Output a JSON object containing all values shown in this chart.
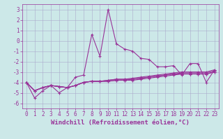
{
  "xlabel": "Windchill (Refroidissement éolien,°C)",
  "background_color": "#cce8e8",
  "grid_color": "#aaaacc",
  "line_color": "#993399",
  "x": [
    0,
    1,
    2,
    3,
    4,
    5,
    6,
    7,
    8,
    9,
    10,
    11,
    12,
    13,
    14,
    15,
    16,
    17,
    18,
    19,
    20,
    21,
    22,
    23
  ],
  "series": [
    [
      -4.0,
      -4.8,
      -4.5,
      -4.3,
      -4.4,
      -4.5,
      -4.3,
      -4.0,
      -3.9,
      -3.9,
      -3.8,
      -3.7,
      -3.7,
      -3.6,
      -3.5,
      -3.4,
      -3.3,
      -3.2,
      -3.1,
      -3.0,
      -3.0,
      -3.0,
      -3.0,
      -2.8
    ],
    [
      -4.0,
      -4.8,
      -4.5,
      -4.3,
      -4.4,
      -4.5,
      -4.3,
      -4.0,
      -3.9,
      -3.9,
      -3.8,
      -3.7,
      -3.7,
      -3.7,
      -3.6,
      -3.5,
      -3.4,
      -3.3,
      -3.2,
      -3.1,
      -3.1,
      -3.1,
      -3.1,
      -2.9
    ],
    [
      -4.0,
      -4.8,
      -4.5,
      -4.3,
      -4.4,
      -4.5,
      -4.3,
      -4.0,
      -3.9,
      -3.9,
      -3.9,
      -3.8,
      -3.8,
      -3.7,
      -3.6,
      -3.5,
      -3.4,
      -3.3,
      -3.2,
      -3.2,
      -3.2,
      -3.2,
      -3.2,
      -3.0
    ],
    [
      -4.0,
      -4.8,
      -4.5,
      -4.3,
      -4.4,
      -4.5,
      -4.3,
      -4.0,
      -3.9,
      -3.9,
      -3.9,
      -3.8,
      -3.8,
      -3.8,
      -3.7,
      -3.6,
      -3.5,
      -3.4,
      -3.3,
      -3.2,
      -3.2,
      -3.2,
      -3.2,
      -3.0
    ],
    [
      -4.0,
      -5.5,
      -4.8,
      -4.3,
      -5.0,
      -4.5,
      -3.5,
      -3.3,
      0.6,
      -1.5,
      3.0,
      -0.3,
      -0.8,
      -1.0,
      -1.7,
      -1.8,
      -2.5,
      -2.5,
      -2.4,
      -3.3,
      -2.2,
      -2.2,
      -4.0,
      -2.8
    ]
  ],
  "ylim": [
    -6.5,
    3.5
  ],
  "yticks": [
    -6,
    -5,
    -4,
    -3,
    -2,
    -1,
    0,
    1,
    2,
    3
  ],
  "xlim": [
    -0.5,
    23.5
  ],
  "xticks": [
    0,
    1,
    2,
    3,
    4,
    5,
    6,
    7,
    8,
    9,
    10,
    11,
    12,
    13,
    14,
    15,
    16,
    17,
    18,
    19,
    20,
    21,
    22,
    23
  ],
  "marker": "+",
  "marker_size": 3,
  "line_width": 0.8,
  "font_color": "#993399",
  "tick_fontsize": 5.5,
  "xlabel_fontsize": 6.5
}
